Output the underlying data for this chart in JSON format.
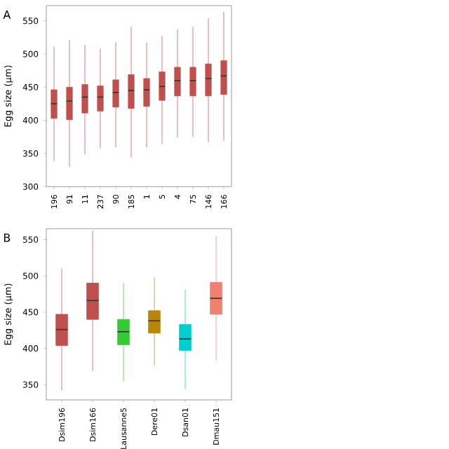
{
  "chart_data": [
    {
      "type": "box",
      "annotations": [
        "A"
      ],
      "ylabel": "Egg size (μm)",
      "categories": [
        "196",
        "91",
        "11",
        "237",
        "90",
        "185",
        "1",
        "5",
        "4",
        "75",
        "146",
        "166"
      ],
      "color": "#c0504d",
      "ylim": [
        300,
        573
      ],
      "yticks": [
        300,
        350,
        400,
        450,
        500,
        550
      ],
      "boxes": [
        {
          "low": 339,
          "q1": 403,
          "median": 425,
          "q3": 446,
          "high": 511
        },
        {
          "low": 330,
          "q1": 401,
          "median": 429,
          "q3": 450,
          "high": 521
        },
        {
          "low": 349,
          "q1": 411,
          "median": 435,
          "q3": 454,
          "high": 514
        },
        {
          "low": 358,
          "q1": 414,
          "median": 435,
          "q3": 452,
          "high": 508
        },
        {
          "low": 359,
          "q1": 420,
          "median": 442,
          "q3": 461,
          "high": 518
        },
        {
          "low": 344,
          "q1": 418,
          "median": 445,
          "q3": 469,
          "high": 541
        },
        {
          "low": 359,
          "q1": 421,
          "median": 446,
          "q3": 463,
          "high": 517
        },
        {
          "low": 364,
          "q1": 430,
          "median": 451,
          "q3": 473,
          "high": 527
        },
        {
          "low": 374,
          "q1": 437,
          "median": 460,
          "q3": 480,
          "high": 537
        },
        {
          "low": 375,
          "q1": 437,
          "median": 460,
          "q3": 480,
          "high": 541
        },
        {
          "low": 367,
          "q1": 437,
          "median": 463,
          "q3": 485,
          "high": 554
        },
        {
          "low": 369,
          "q1": 439,
          "median": 467,
          "q3": 490,
          "high": 564
        }
      ]
    },
    {
      "type": "box",
      "annotations": [
        "B"
      ],
      "ylabel": "Egg size (μm)",
      "categories": [
        "Dsim196",
        "Dsim166",
        "Lausanne5",
        "Dere01",
        "Dsan01",
        "Dmau151"
      ],
      "colors": [
        "#c0504d",
        "#c0504d",
        "#32cd32",
        "#b8860b",
        "#00ced1",
        "#f08070"
      ],
      "ylim": [
        329,
        565
      ],
      "yticks": [
        350,
        400,
        450,
        500,
        550
      ],
      "boxes": [
        {
          "low": 342,
          "q1": 404,
          "median": 426,
          "q3": 447,
          "high": 510
        },
        {
          "low": 369,
          "q1": 440,
          "median": 466,
          "q3": 490,
          "high": 562
        },
        {
          "low": 354,
          "q1": 405,
          "median": 423,
          "q3": 440,
          "high": 490
        },
        {
          "low": 376,
          "q1": 421,
          "median": 438,
          "q3": 452,
          "high": 498
        },
        {
          "low": 344,
          "q1": 397,
          "median": 413,
          "q3": 433,
          "high": 481
        },
        {
          "low": 383,
          "q1": 447,
          "median": 469,
          "q3": 491,
          "high": 555
        }
      ]
    }
  ]
}
